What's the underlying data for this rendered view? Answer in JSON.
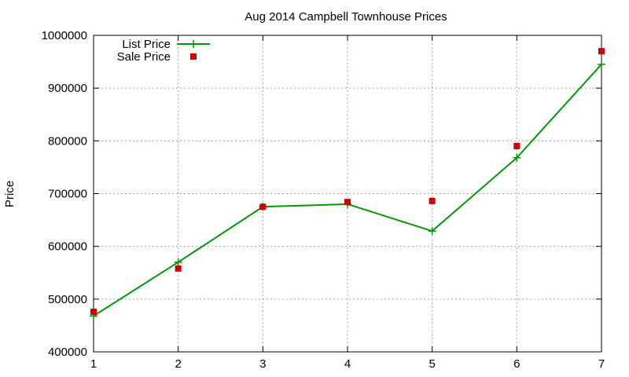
{
  "chart_data": {
    "type": "line",
    "title": "Aug 2014 Campbell Townhouse Prices",
    "xlabel": "",
    "ylabel": "Price",
    "xlim": [
      1,
      7
    ],
    "ylim": [
      400000,
      1000000
    ],
    "x_ticks": [
      1,
      2,
      3,
      4,
      5,
      6,
      7
    ],
    "y_ticks": [
      400000,
      500000,
      600000,
      700000,
      800000,
      900000,
      1000000
    ],
    "grid": true,
    "legend_position": "top-left",
    "series": [
      {
        "name": "List Price",
        "style": "lines+points",
        "marker": "plus",
        "color": "#009900",
        "x": [
          1,
          2,
          3,
          4,
          5,
          6,
          7
        ],
        "y": [
          468000,
          570000,
          675000,
          680000,
          629000,
          768000,
          945000
        ]
      },
      {
        "name": "Sale Price",
        "style": "points",
        "marker": "square",
        "color": "#cc0000",
        "x": [
          1,
          2,
          3,
          4,
          5,
          6,
          7
        ],
        "y": [
          476000,
          558000,
          675000,
          684000,
          686000,
          790000,
          970000
        ]
      }
    ]
  }
}
